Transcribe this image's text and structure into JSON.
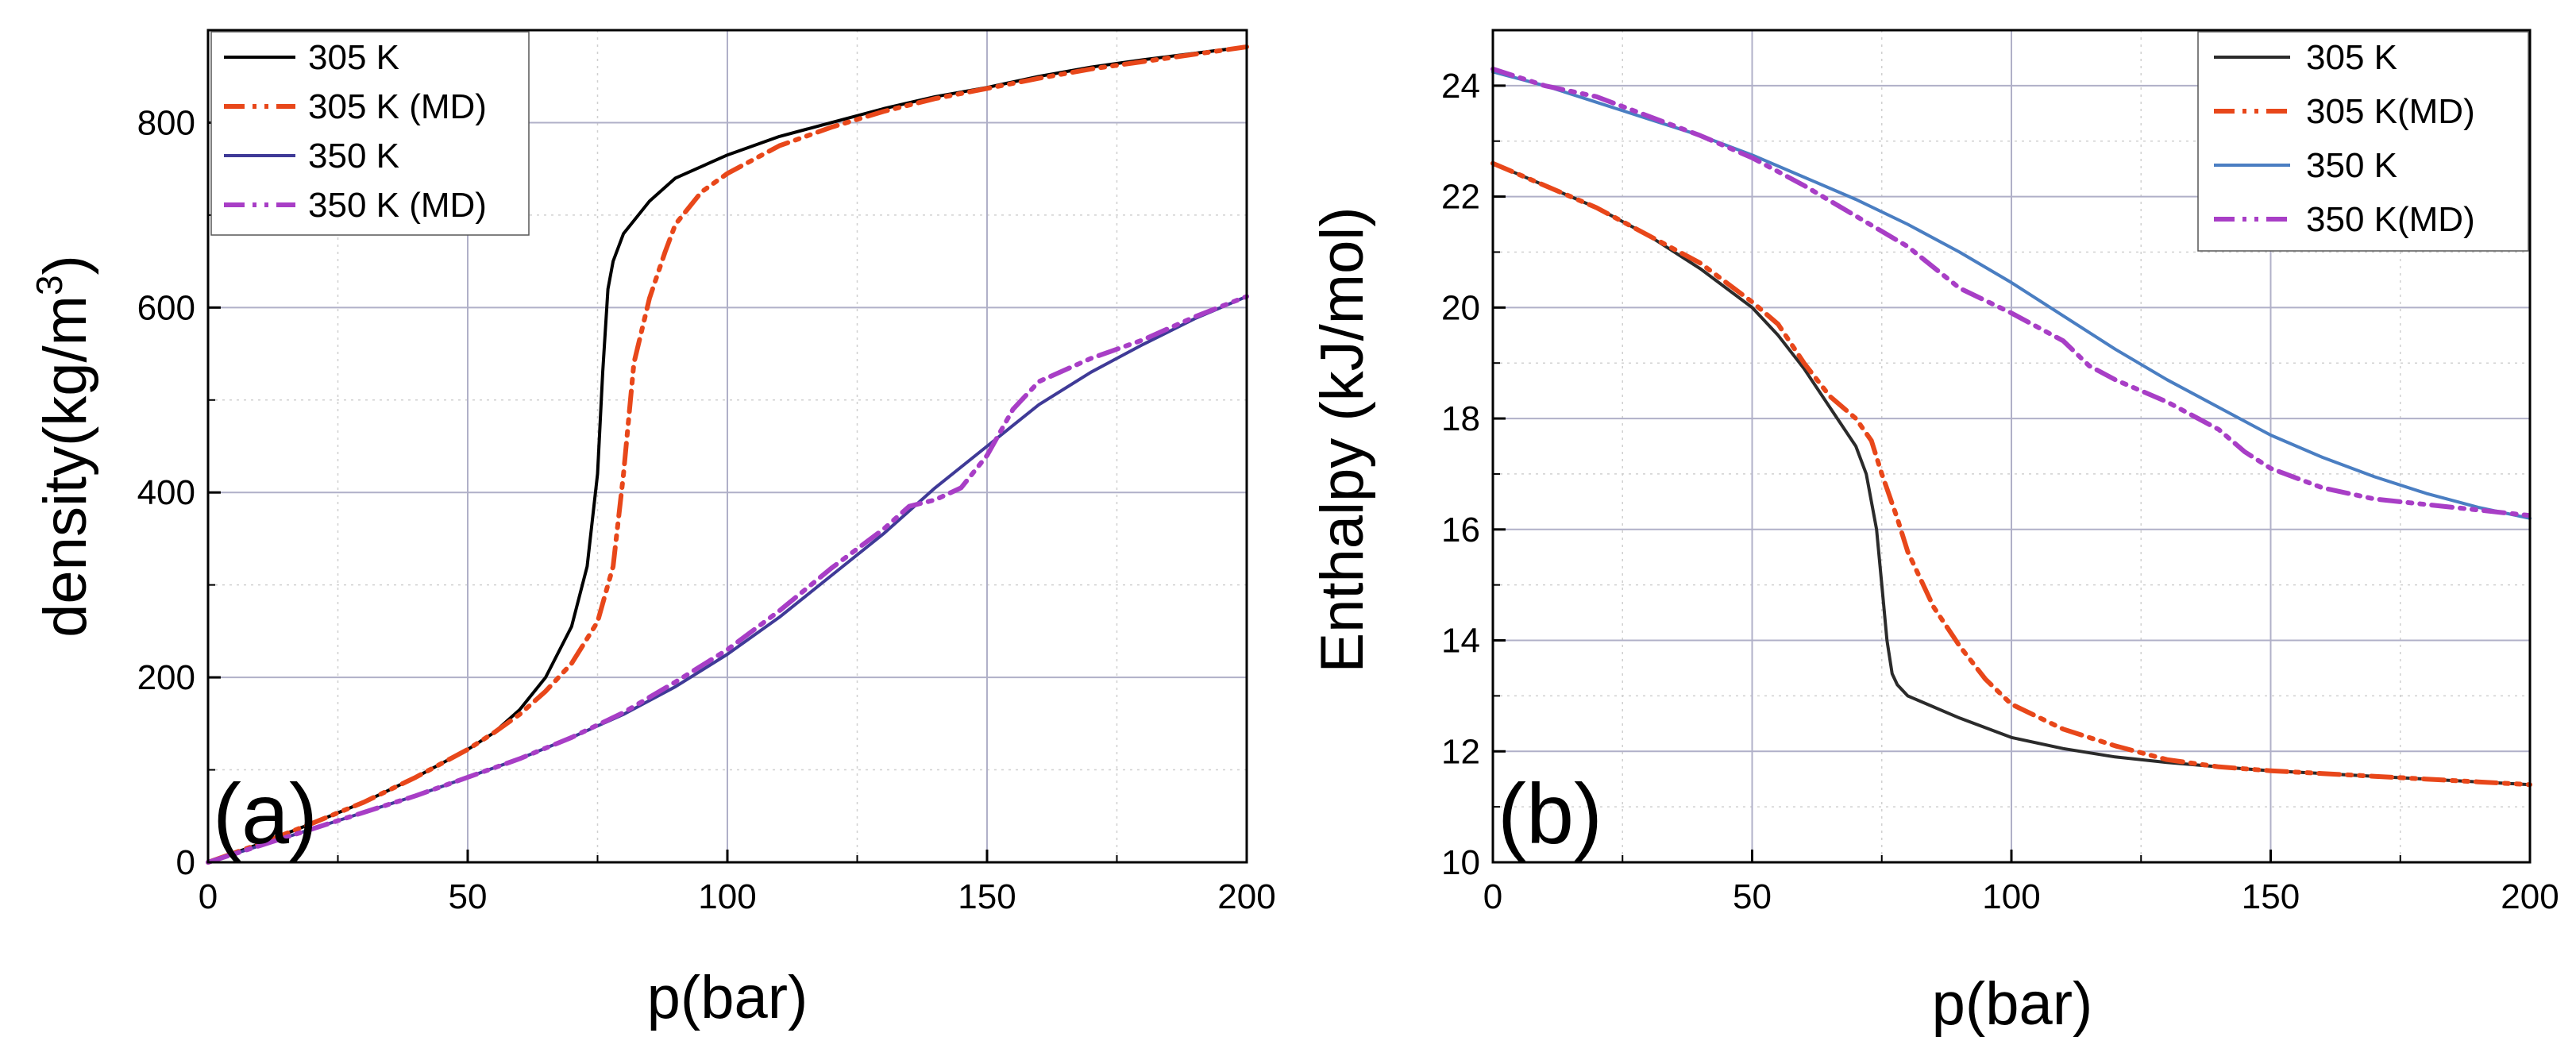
{
  "chart_data": [
    {
      "type": "line",
      "panel_label": "(a)",
      "xlabel": "p(bar)",
      "ylabel": "density(kg/m",
      "ylabel_sup": "3",
      "ylabel_close": ")",
      "xlim": [
        0,
        200
      ],
      "ylim": [
        0,
        900
      ],
      "xticks": [
        0,
        50,
        100,
        150,
        200
      ],
      "yticks": [
        0,
        200,
        400,
        600,
        800
      ],
      "xtick_labels": [
        "0",
        "50",
        "100",
        "150",
        "200"
      ],
      "ytick_labels": [
        "0",
        "200",
        "400",
        "600",
        "800"
      ],
      "grid": true,
      "legend_position": "top-left",
      "series": [
        {
          "name": "305 K",
          "color": "#000000",
          "style": "solid",
          "x": [
            0,
            10,
            20,
            30,
            40,
            50,
            55,
            60,
            65,
            70,
            73,
            75,
            76,
            77,
            78,
            80,
            85,
            90,
            100,
            110,
            120,
            130,
            140,
            150,
            160,
            170,
            180,
            190,
            200
          ],
          "y": [
            0,
            20,
            42,
            65,
            92,
            122,
            140,
            165,
            200,
            255,
            320,
            420,
            530,
            620,
            650,
            680,
            715,
            740,
            765,
            785,
            800,
            815,
            828,
            838,
            850,
            860,
            868,
            875,
            882
          ]
        },
        {
          "name": "305 K (MD)",
          "color": "#e8471a",
          "style": "dashdotdot",
          "x": [
            0,
            10,
            20,
            30,
            40,
            50,
            55,
            60,
            65,
            70,
            75,
            78,
            80,
            82,
            85,
            88,
            90,
            95,
            100,
            110,
            120,
            130,
            140,
            150,
            160,
            170,
            180,
            190,
            200
          ],
          "y": [
            0,
            20,
            42,
            65,
            92,
            122,
            140,
            160,
            185,
            215,
            260,
            320,
            420,
            540,
            610,
            660,
            690,
            725,
            745,
            775,
            795,
            812,
            826,
            837,
            848,
            858,
            866,
            874,
            882
          ]
        },
        {
          "name": "350 K",
          "color": "#3f3a97",
          "style": "solid",
          "x": [
            0,
            10,
            20,
            30,
            40,
            50,
            60,
            70,
            80,
            90,
            100,
            110,
            120,
            130,
            140,
            150,
            160,
            170,
            180,
            190,
            200
          ],
          "y": [
            0,
            18,
            36,
            54,
            72,
            92,
            112,
            135,
            160,
            190,
            225,
            265,
            310,
            355,
            405,
            450,
            495,
            530,
            560,
            588,
            612
          ]
        },
        {
          "name": "350 K (MD)",
          "color": "#a83ec6",
          "style": "dashdotdot",
          "x": [
            0,
            10,
            20,
            30,
            40,
            50,
            60,
            70,
            80,
            90,
            100,
            110,
            120,
            130,
            135,
            140,
            145,
            150,
            155,
            160,
            170,
            180,
            190,
            200
          ],
          "y": [
            0,
            18,
            36,
            54,
            72,
            92,
            112,
            135,
            162,
            195,
            230,
            272,
            318,
            360,
            385,
            392,
            405,
            440,
            490,
            520,
            545,
            565,
            590,
            612
          ]
        }
      ]
    },
    {
      "type": "line",
      "panel_label": "(b)",
      "xlabel": "p(bar)",
      "ylabel": "Enthalpy (kJ/mol)",
      "xlim": [
        0,
        200
      ],
      "ylim": [
        10,
        25
      ],
      "xticks": [
        0,
        50,
        100,
        150,
        200
      ],
      "yticks": [
        10,
        12,
        14,
        16,
        18,
        20,
        22,
        24
      ],
      "xtick_labels": [
        "0",
        "50",
        "100",
        "150",
        "200"
      ],
      "ytick_labels": [
        "10",
        "12",
        "14",
        "16",
        "18",
        "20",
        "22",
        "24"
      ],
      "grid": true,
      "legend_position": "top-right",
      "series": [
        {
          "name": "305 K",
          "color": "#2b2b2b",
          "style": "solid",
          "x": [
            0,
            10,
            20,
            30,
            40,
            50,
            55,
            60,
            65,
            70,
            72,
            74,
            75,
            76,
            77,
            78,
            80,
            85,
            90,
            100,
            110,
            120,
            130,
            140,
            150,
            160,
            170,
            180,
            190,
            200
          ],
          "y": [
            22.6,
            22.2,
            21.8,
            21.3,
            20.7,
            20.0,
            19.5,
            18.9,
            18.2,
            17.5,
            17.0,
            16.0,
            15.0,
            14.0,
            13.4,
            13.2,
            13.0,
            12.8,
            12.6,
            12.25,
            12.05,
            11.9,
            11.8,
            11.72,
            11.65,
            11.6,
            11.55,
            11.5,
            11.45,
            11.4
          ]
        },
        {
          "name": "305 K(MD)",
          "color": "#e8471a",
          "style": "dashdotdot",
          "x": [
            0,
            10,
            20,
            30,
            40,
            50,
            55,
            60,
            65,
            70,
            73,
            75,
            78,
            80,
            85,
            90,
            95,
            100,
            110,
            120,
            130,
            140,
            150,
            160,
            170,
            180,
            190,
            200
          ],
          "y": [
            22.6,
            22.2,
            21.8,
            21.3,
            20.8,
            20.1,
            19.7,
            19.0,
            18.4,
            18.0,
            17.6,
            17.0,
            16.2,
            15.6,
            14.6,
            13.9,
            13.3,
            12.85,
            12.4,
            12.1,
            11.85,
            11.72,
            11.65,
            11.6,
            11.55,
            11.5,
            11.45,
            11.4
          ]
        },
        {
          "name": "350 K",
          "color": "#4a7ec2",
          "style": "solid",
          "x": [
            0,
            10,
            20,
            30,
            40,
            50,
            60,
            70,
            80,
            90,
            100,
            110,
            120,
            130,
            140,
            150,
            160,
            170,
            180,
            190,
            200
          ],
          "y": [
            24.25,
            24.0,
            23.7,
            23.4,
            23.1,
            22.75,
            22.35,
            21.95,
            21.5,
            21.0,
            20.45,
            19.85,
            19.25,
            18.7,
            18.2,
            17.7,
            17.3,
            16.95,
            16.65,
            16.4,
            16.2
          ]
        },
        {
          "name": "350 K(MD)",
          "color": "#a83ec6",
          "style": "dashdotdot",
          "x": [
            0,
            10,
            20,
            30,
            40,
            50,
            60,
            70,
            80,
            90,
            100,
            110,
            115,
            120,
            130,
            140,
            145,
            150,
            160,
            170,
            180,
            190,
            200
          ],
          "y": [
            24.3,
            24.0,
            23.8,
            23.45,
            23.1,
            22.7,
            22.2,
            21.65,
            21.1,
            20.35,
            19.9,
            19.4,
            18.95,
            18.7,
            18.3,
            17.8,
            17.4,
            17.1,
            16.75,
            16.55,
            16.45,
            16.35,
            16.25
          ]
        }
      ]
    }
  ]
}
